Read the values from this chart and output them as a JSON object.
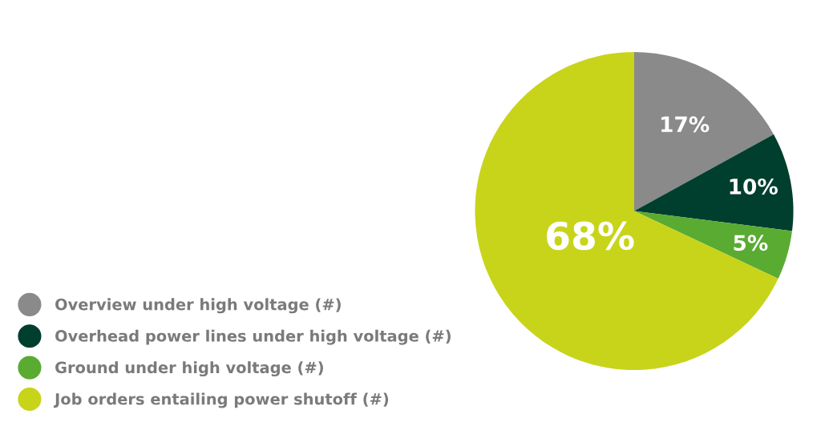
{
  "chart_data": {
    "type": "pie",
    "categories": [
      "Overview under high voltage (#)",
      "Overhead power lines under high voltage (#)",
      "Ground under high voltage (#)",
      "Job orders entailing power shutoff (#)"
    ],
    "values": [
      17,
      10,
      5,
      68
    ],
    "colors": [
      "#8a8a8a",
      "#003f2d",
      "#5aab32",
      "#c8d41a"
    ],
    "value_labels": [
      "17%",
      "10%",
      "5%",
      "68%"
    ],
    "legend": "bottom left"
  }
}
